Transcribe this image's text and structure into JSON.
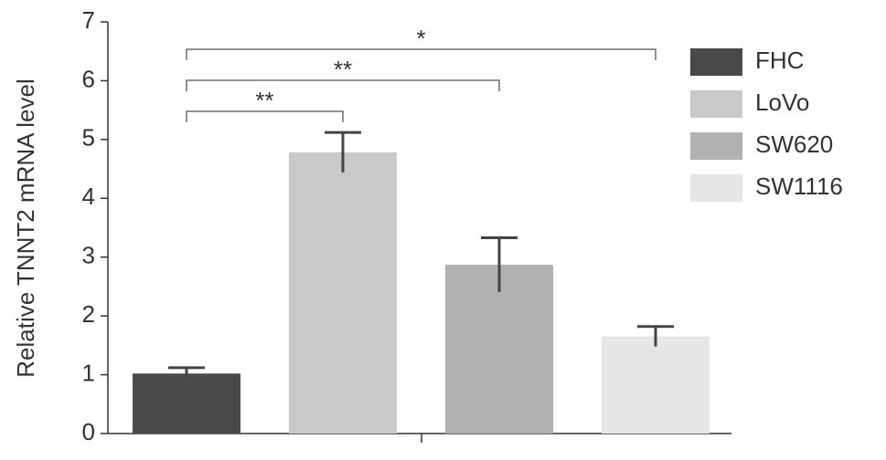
{
  "chart_data": {
    "type": "bar",
    "y_label": "Relative TNNT2 mRNA level",
    "categories": [
      "FHC",
      "LoVo",
      "SW620",
      "SW1116"
    ],
    "values": [
      1.02,
      4.78,
      2.87,
      1.65
    ],
    "errors": [
      0.1,
      0.34,
      0.46,
      0.17
    ],
    "colors": [
      "#4a4a4a",
      "#c9c9c9",
      "#b1b1b1",
      "#e6e6e6"
    ],
    "ylim": [
      0,
      7
    ],
    "yticks": [
      0,
      1,
      2,
      3,
      4,
      5,
      6,
      7
    ],
    "grid": false,
    "legend": "right",
    "brackets": [
      {
        "label": "**",
        "from": 0,
        "to": 1
      },
      {
        "label": "**",
        "from": 0,
        "to": 2
      },
      {
        "label": "*",
        "from": 0,
        "to": 3
      }
    ]
  }
}
